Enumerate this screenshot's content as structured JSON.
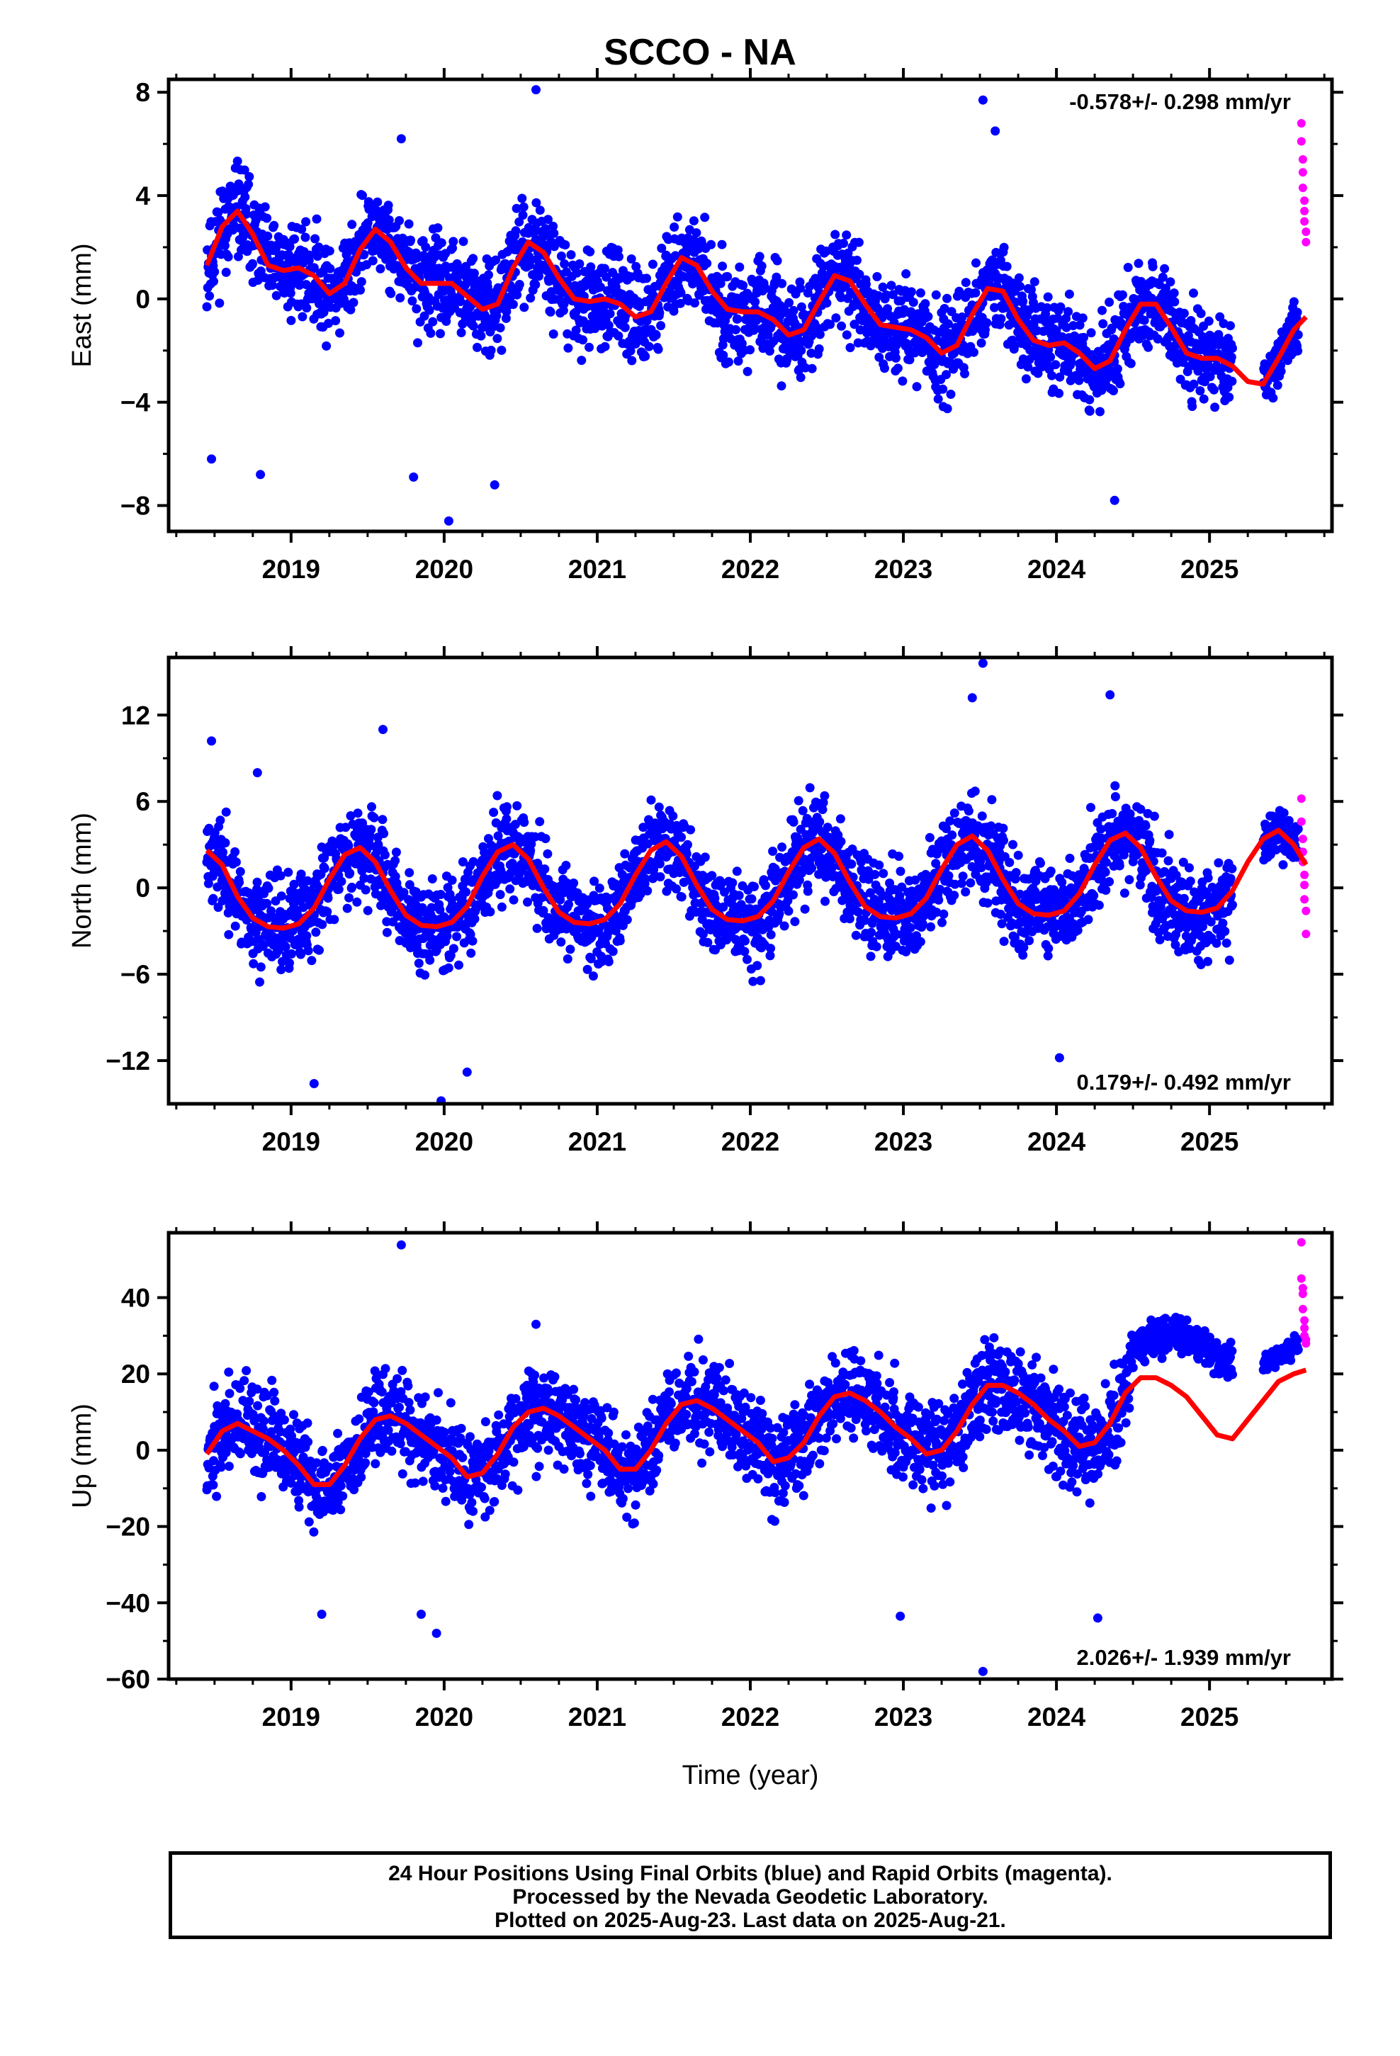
{
  "title": "SCCO - NA",
  "colors": {
    "final_orbits": "#0000ff",
    "rapid_orbits": "#ff00ff",
    "model_fit": "#ff0000",
    "frame": "#000000"
  },
  "caption": {
    "line1": "24 Hour Positions Using Final Orbits (blue) and Rapid Orbits (magenta).",
    "line2": "Processed by the Nevada Geodetic Laboratory.",
    "line3": "Plotted on 2025-Aug-23. Last data on 2025-Aug-21."
  },
  "chart_data": [
    {
      "type": "scatter",
      "component": "east",
      "ylabel": "East (mm)",
      "xlabel": "",
      "xlim": [
        2018.2,
        2025.8
      ],
      "ylim": [
        -9,
        8.5
      ],
      "xticks": [
        "2019",
        "2020",
        "2021",
        "2022",
        "2023",
        "2024",
        "2025"
      ],
      "yticks": [
        "8",
        "4",
        "0",
        "−4",
        "−8"
      ],
      "ytick_values": [
        8,
        4,
        0,
        -4,
        -8
      ],
      "rate_text": "-0.578+/- 0.298 mm/yr",
      "rate_position": "top-right",
      "series": [
        {
          "name": "Final Orbits",
          "kind": "points",
          "color": "#0000ff",
          "data_span": [
            2018.45,
            2025.58
          ],
          "gaps": [
            [
              2025.15,
              2025.35
            ]
          ],
          "outliers": [
            [
              2018.48,
              -6.2
            ],
            [
              2018.8,
              -6.8
            ],
            [
              2019.8,
              -6.9
            ],
            [
              2020.03,
              -8.6
            ],
            [
              2020.33,
              -7.2
            ],
            [
              2020.6,
              8.1
            ],
            [
              2023.52,
              7.7
            ],
            [
              2023.6,
              6.5
            ],
            [
              2024.38,
              -7.8
            ],
            [
              2019.72,
              6.2
            ]
          ]
        },
        {
          "name": "Rapid Orbits",
          "kind": "points",
          "color": "#ff00ff",
          "x": [
            2025.6,
            2025.6,
            2025.61,
            2025.61,
            2025.61,
            2025.62,
            2025.62,
            2025.62,
            2025.63,
            2025.63
          ],
          "y": [
            6.8,
            6.1,
            5.4,
            4.9,
            4.3,
            3.8,
            3.4,
            3.0,
            2.6,
            2.2
          ]
        },
        {
          "name": "Model",
          "kind": "line",
          "color": "#ff0000",
          "x": [
            2018.45,
            2018.55,
            2018.65,
            2018.75,
            2018.85,
            2018.95,
            2019.05,
            2019.15,
            2019.25,
            2019.35,
            2019.45,
            2019.55,
            2019.65,
            2019.75,
            2019.85,
            2019.95,
            2020.05,
            2020.15,
            2020.25,
            2020.35,
            2020.45,
            2020.55,
            2020.65,
            2020.75,
            2020.85,
            2020.95,
            2021.05,
            2021.15,
            2021.25,
            2021.35,
            2021.45,
            2021.55,
            2021.65,
            2021.75,
            2021.85,
            2021.95,
            2022.05,
            2022.15,
            2022.25,
            2022.35,
            2022.45,
            2022.55,
            2022.65,
            2022.75,
            2022.85,
            2022.95,
            2023.05,
            2023.15,
            2023.25,
            2023.35,
            2023.45,
            2023.55,
            2023.65,
            2023.75,
            2023.85,
            2023.95,
            2024.05,
            2024.15,
            2024.25,
            2024.35,
            2024.45,
            2024.55,
            2024.65,
            2024.75,
            2024.85,
            2024.95,
            2025.05,
            2025.15,
            2025.25,
            2025.35,
            2025.45,
            2025.55,
            2025.63
          ],
          "y": [
            1.3,
            2.8,
            3.4,
            2.5,
            1.3,
            1.1,
            1.2,
            0.9,
            0.2,
            0.6,
            1.9,
            2.7,
            2.2,
            1.2,
            0.6,
            0.6,
            0.6,
            0.1,
            -0.4,
            -0.2,
            1.2,
            2.2,
            1.8,
            0.8,
            0.0,
            -0.1,
            0.0,
            -0.2,
            -0.7,
            -0.5,
            0.6,
            1.6,
            1.3,
            0.3,
            -0.4,
            -0.5,
            -0.5,
            -0.8,
            -1.4,
            -1.2,
            -0.1,
            0.9,
            0.7,
            -0.2,
            -1.0,
            -1.1,
            -1.2,
            -1.5,
            -2.1,
            -1.8,
            -0.6,
            0.4,
            0.3,
            -0.8,
            -1.6,
            -1.8,
            -1.7,
            -2.1,
            -2.7,
            -2.4,
            -1.2,
            -0.2,
            -0.2,
            -1.1,
            -2.1,
            -2.3,
            -2.3,
            -2.6,
            -3.2,
            -3.3,
            -2.3,
            -1.2,
            -0.7
          ]
        }
      ]
    },
    {
      "type": "scatter",
      "component": "north",
      "ylabel": "North (mm)",
      "xlabel": "",
      "xlim": [
        2018.2,
        2025.8
      ],
      "ylim": [
        -15,
        16
      ],
      "xticks": [
        "2019",
        "2020",
        "2021",
        "2022",
        "2023",
        "2024",
        "2025"
      ],
      "yticks": [
        "12",
        "6",
        "0",
        "−6",
        "−12"
      ],
      "ytick_values": [
        12,
        6,
        0,
        -6,
        -12
      ],
      "rate_text": "0.179+/- 0.492 mm/yr",
      "rate_position": "bottom-right",
      "series": [
        {
          "name": "Final Orbits",
          "kind": "points",
          "color": "#0000ff",
          "data_span": [
            2018.45,
            2025.58
          ],
          "gaps": [
            [
              2025.15,
              2025.35
            ]
          ],
          "outliers": [
            [
              2018.48,
              10.2
            ],
            [
              2019.15,
              -13.6
            ],
            [
              2019.98,
              -14.8
            ],
            [
              2023.45,
              13.2
            ],
            [
              2023.52,
              15.6
            ],
            [
              2024.35,
              13.4
            ],
            [
              2024.02,
              -11.8
            ],
            [
              2019.6,
              11.0
            ],
            [
              2020.15,
              -12.8
            ],
            [
              2018.78,
              8.0
            ]
          ]
        },
        {
          "name": "Rapid Orbits",
          "kind": "points",
          "color": "#ff00ff",
          "x": [
            2025.6,
            2025.6,
            2025.61,
            2025.61,
            2025.61,
            2025.62,
            2025.62,
            2025.62,
            2025.63,
            2025.63
          ],
          "y": [
            6.2,
            4.6,
            3.4,
            2.5,
            1.8,
            0.9,
            0.2,
            -0.8,
            -1.6,
            -3.2
          ]
        },
        {
          "name": "Model",
          "kind": "line",
          "color": "#ff0000",
          "x": [
            2018.45,
            2018.55,
            2018.65,
            2018.75,
            2018.85,
            2018.95,
            2019.05,
            2019.15,
            2019.25,
            2019.35,
            2019.45,
            2019.55,
            2019.65,
            2019.75,
            2019.85,
            2019.95,
            2020.05,
            2020.15,
            2020.25,
            2020.35,
            2020.45,
            2020.55,
            2020.65,
            2020.75,
            2020.85,
            2020.95,
            2021.05,
            2021.15,
            2021.25,
            2021.35,
            2021.45,
            2021.55,
            2021.65,
            2021.75,
            2021.85,
            2021.95,
            2022.05,
            2022.15,
            2022.25,
            2022.35,
            2022.45,
            2022.55,
            2022.65,
            2022.75,
            2022.85,
            2022.95,
            2023.05,
            2023.15,
            2023.25,
            2023.35,
            2023.45,
            2023.55,
            2023.65,
            2023.75,
            2023.85,
            2023.95,
            2024.05,
            2024.15,
            2024.25,
            2024.35,
            2024.45,
            2024.55,
            2024.65,
            2024.75,
            2024.85,
            2024.95,
            2025.05,
            2025.15,
            2025.25,
            2025.35,
            2025.45,
            2025.55,
            2025.63
          ],
          "y": [
            2.6,
            1.6,
            -0.6,
            -2.1,
            -2.7,
            -2.8,
            -2.5,
            -1.4,
            0.6,
            2.3,
            2.8,
            1.8,
            -0.2,
            -1.9,
            -2.6,
            -2.7,
            -2.4,
            -1.3,
            0.8,
            2.5,
            3.0,
            2.0,
            0.0,
            -1.7,
            -2.4,
            -2.5,
            -2.2,
            -1.1,
            0.9,
            2.6,
            3.2,
            2.2,
            0.2,
            -1.5,
            -2.2,
            -2.3,
            -2.0,
            -0.9,
            1.1,
            2.8,
            3.4,
            2.4,
            0.4,
            -1.3,
            -2.0,
            -2.1,
            -1.8,
            -0.7,
            1.3,
            3.0,
            3.6,
            2.6,
            0.6,
            -1.1,
            -1.8,
            -1.9,
            -1.6,
            -0.4,
            1.6,
            3.3,
            3.8,
            2.8,
            0.8,
            -0.9,
            -1.6,
            -1.7,
            -1.4,
            -0.2,
            1.8,
            3.4,
            4.0,
            3.0,
            1.6
          ]
        }
      ]
    },
    {
      "type": "scatter",
      "component": "up",
      "ylabel": "Up (mm)",
      "xlabel": "Time (year)",
      "xlim": [
        2018.2,
        2025.8
      ],
      "ylim": [
        -60,
        57
      ],
      "xticks": [
        "2019",
        "2020",
        "2021",
        "2022",
        "2023",
        "2024",
        "2025"
      ],
      "yticks": [
        "40",
        "20",
        "0",
        "−20",
        "−40",
        "−60"
      ],
      "ytick_values": [
        40,
        20,
        0,
        -20,
        -40,
        -60
      ],
      "rate_text": "2.026+/- 1.939 mm/yr",
      "rate_position": "bottom-right",
      "series": [
        {
          "name": "Final Orbits",
          "kind": "points",
          "color": "#0000ff",
          "data_span": [
            2018.45,
            2025.58
          ],
          "gaps": [
            [
              2025.15,
              2025.35
            ]
          ],
          "outliers": [
            [
              2019.72,
              53.8
            ],
            [
              2019.85,
              -43.0
            ],
            [
              2019.2,
              -43.0
            ],
            [
              2023.52,
              -58.0
            ],
            [
              2024.27,
              -44.0
            ],
            [
              2022.98,
              -43.5
            ],
            [
              2019.95,
              -48.0
            ],
            [
              2020.6,
              33.0
            ]
          ]
        },
        {
          "name": "Rapid Orbits",
          "kind": "points",
          "color": "#ff00ff",
          "x": [
            2025.6,
            2025.6,
            2025.61,
            2025.61,
            2025.61,
            2025.62,
            2025.62,
            2025.62,
            2025.63,
            2025.63
          ],
          "y": [
            54.5,
            45.0,
            42.5,
            41.0,
            37.0,
            34.0,
            32.0,
            30.0,
            29.0,
            28.0
          ]
        },
        {
          "name": "Model",
          "kind": "line",
          "color": "#ff0000",
          "x": [
            2018.45,
            2018.55,
            2018.65,
            2018.75,
            2018.85,
            2018.95,
            2019.05,
            2019.15,
            2019.25,
            2019.35,
            2019.45,
            2019.55,
            2019.65,
            2019.75,
            2019.85,
            2019.95,
            2020.05,
            2020.15,
            2020.25,
            2020.35,
            2020.45,
            2020.55,
            2020.65,
            2020.75,
            2020.85,
            2020.95,
            2021.05,
            2021.15,
            2021.25,
            2021.35,
            2021.45,
            2021.55,
            2021.65,
            2021.75,
            2021.85,
            2021.95,
            2022.05,
            2022.15,
            2022.25,
            2022.35,
            2022.45,
            2022.55,
            2022.65,
            2022.75,
            2022.85,
            2022.95,
            2023.05,
            2023.15,
            2023.25,
            2023.35,
            2023.45,
            2023.55,
            2023.65,
            2023.75,
            2023.85,
            2023.95,
            2024.05,
            2024.15,
            2024.25,
            2024.35,
            2024.45,
            2024.55,
            2024.65,
            2024.75,
            2024.85,
            2024.95,
            2025.05,
            2025.15,
            2025.25,
            2025.35,
            2025.45,
            2025.55,
            2025.63
          ],
          "y": [
            -1,
            5,
            7,
            5,
            3,
            0,
            -4,
            -9,
            -9,
            -4,
            3,
            8,
            9,
            7,
            4,
            1,
            -2,
            -7,
            -6,
            -1,
            6,
            10,
            11,
            9,
            6,
            3,
            0,
            -5,
            -5,
            0,
            7,
            12,
            13,
            11,
            8,
            5,
            2,
            -3,
            -2,
            2,
            9,
            14,
            15,
            13,
            10,
            6,
            3,
            -1,
            0,
            5,
            12,
            17,
            17,
            15,
            12,
            8,
            5,
            1,
            2,
            7,
            15,
            19,
            19,
            17,
            14,
            9,
            4,
            3,
            8,
            13,
            18,
            20,
            21
          ]
        }
      ]
    }
  ]
}
